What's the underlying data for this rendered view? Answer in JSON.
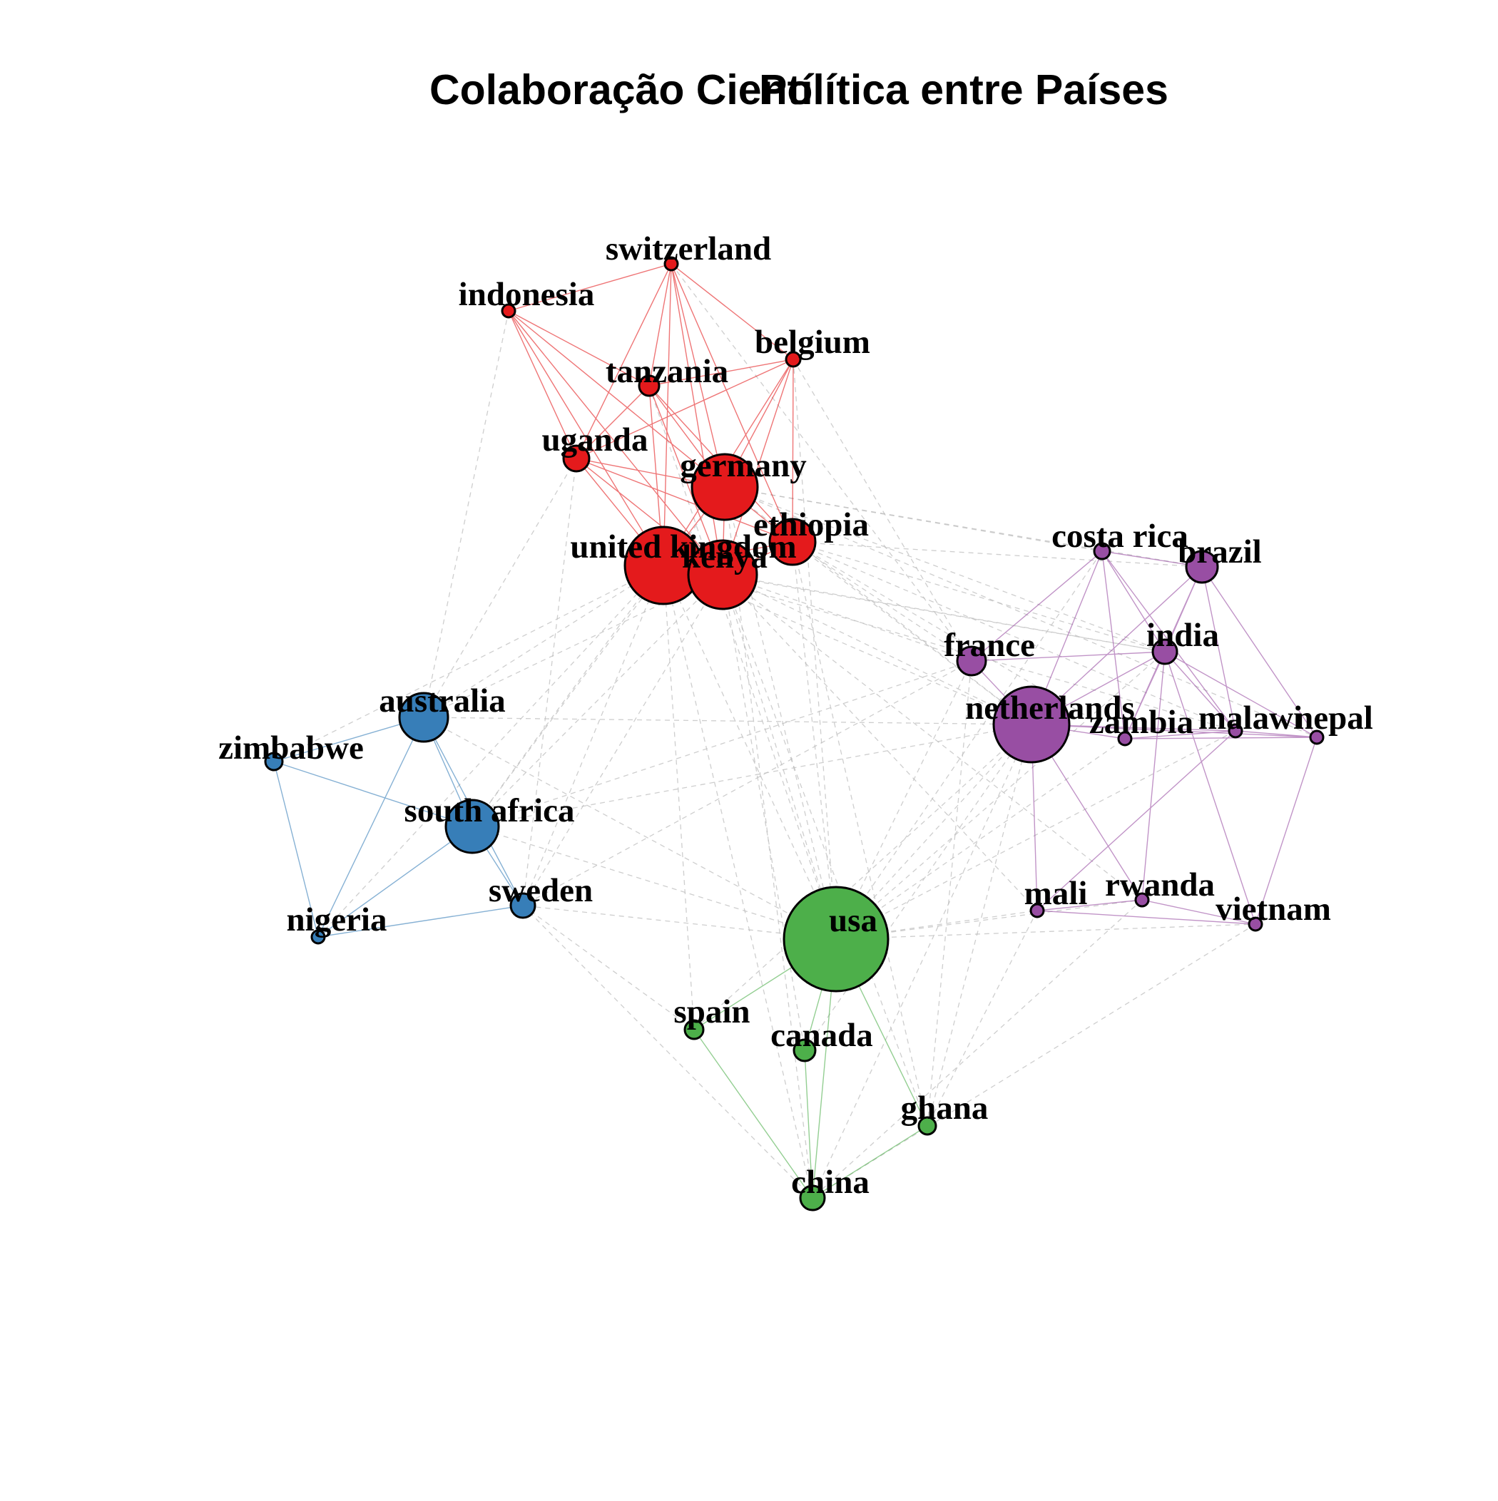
{
  "title_parts": [
    "Colaboração Cientí",
    "Países"
  ],
  "title_parts_b": "Política entre Países",
  "community_colors": {
    "red": "#E41A1C",
    "blue": "#377EB8",
    "green": "#4DAF4A",
    "purple": "#984EA3",
    "inter": "#BDBDBD"
  },
  "nodes": [
    {
      "id": "switzerland",
      "label": "switzerland",
      "group": "red",
      "weight": 1
    },
    {
      "id": "indonesia",
      "label": "indonesia",
      "group": "red",
      "weight": 1
    },
    {
      "id": "belgium",
      "label": "belgium",
      "group": "red",
      "weight": 1
    },
    {
      "id": "tanzania",
      "label": "tanzania",
      "group": "red",
      "weight": 1.3
    },
    {
      "id": "uganda",
      "label": "uganda",
      "group": "red",
      "weight": 1.8
    },
    {
      "id": "germany",
      "label": "germany",
      "group": "red",
      "weight": 6
    },
    {
      "id": "ethiopia",
      "label": "ethiopia",
      "group": "red",
      "weight": 4
    },
    {
      "id": "united_kingdom",
      "label": "united kingdom",
      "group": "red",
      "weight": 9
    },
    {
      "id": "kenya",
      "label": "kenya",
      "group": "red",
      "weight": 7
    },
    {
      "id": "australia",
      "label": "australia",
      "group": "blue",
      "weight": 3.5
    },
    {
      "id": "zimbabwe",
      "label": "zimbabwe",
      "group": "blue",
      "weight": 1.2
    },
    {
      "id": "south_africa",
      "label": "south africa",
      "group": "blue",
      "weight": 4.5
    },
    {
      "id": "sweden",
      "label": "sweden",
      "group": "blue",
      "weight": 1.8
    },
    {
      "id": "nigeria",
      "label": "nigeria",
      "group": "blue",
      "weight": 0.8
    },
    {
      "id": "usa",
      "label": "usa",
      "group": "green",
      "weight": 14
    },
    {
      "id": "spain",
      "label": "spain",
      "group": "green",
      "weight": 1.2
    },
    {
      "id": "canada",
      "label": "canada",
      "group": "green",
      "weight": 1.6
    },
    {
      "id": "ghana",
      "label": "ghana",
      "group": "green",
      "weight": 1.3
    },
    {
      "id": "china",
      "label": "china",
      "group": "green",
      "weight": 2
    },
    {
      "id": "costa_rica",
      "label": "costa rica",
      "group": "purple",
      "weight": 1
    },
    {
      "id": "brazil",
      "label": "brazil",
      "group": "purple",
      "weight": 2.5
    },
    {
      "id": "france",
      "label": "france",
      "group": "purple",
      "weight": 2.5
    },
    {
      "id": "india",
      "label": "india",
      "group": "purple",
      "weight": 2.2
    },
    {
      "id": "netherlands",
      "label": "netherlands",
      "group": "purple",
      "weight": 9
    },
    {
      "id": "zambia",
      "label": "zambia",
      "group": "purple",
      "weight": 0.9
    },
    {
      "id": "malawi",
      "label": "malawi",
      "group": "purple",
      "weight": 0.9
    },
    {
      "id": "nepal",
      "label": "nepal",
      "group": "purple",
      "weight": 0.9
    },
    {
      "id": "mali",
      "label": "mali",
      "group": "purple",
      "weight": 0.9
    },
    {
      "id": "rwanda",
      "label": "rwanda",
      "group": "purple",
      "weight": 0.9
    },
    {
      "id": "vietnam",
      "label": "vietnam",
      "group": "purple",
      "weight": 0.9
    }
  ],
  "edges_intra": [
    [
      "switzerland",
      "indonesia"
    ],
    [
      "switzerland",
      "belgium"
    ],
    [
      "switzerland",
      "tanzania"
    ],
    [
      "switzerland",
      "uganda"
    ],
    [
      "switzerland",
      "germany"
    ],
    [
      "switzerland",
      "kenya"
    ],
    [
      "switzerland",
      "united_kingdom"
    ],
    [
      "switzerland",
      "ethiopia"
    ],
    [
      "indonesia",
      "uganda"
    ],
    [
      "indonesia",
      "germany"
    ],
    [
      "indonesia",
      "kenya"
    ],
    [
      "indonesia",
      "united_kingdom"
    ],
    [
      "indonesia",
      "tanzania"
    ],
    [
      "belgium",
      "tanzania"
    ],
    [
      "belgium",
      "germany"
    ],
    [
      "belgium",
      "ethiopia"
    ],
    [
      "belgium",
      "kenya"
    ],
    [
      "belgium",
      "united_kingdom"
    ],
    [
      "belgium",
      "uganda"
    ],
    [
      "tanzania",
      "uganda"
    ],
    [
      "tanzania",
      "germany"
    ],
    [
      "tanzania",
      "kenya"
    ],
    [
      "tanzania",
      "united_kingdom"
    ],
    [
      "tanzania",
      "ethiopia"
    ],
    [
      "uganda",
      "germany"
    ],
    [
      "uganda",
      "kenya"
    ],
    [
      "uganda",
      "united_kingdom"
    ],
    [
      "uganda",
      "ethiopia"
    ],
    [
      "germany",
      "ethiopia"
    ],
    [
      "germany",
      "kenya"
    ],
    [
      "germany",
      "united_kingdom"
    ],
    [
      "ethiopia",
      "kenya"
    ],
    [
      "ethiopia",
      "united_kingdom"
    ],
    [
      "kenya",
      "united_kingdom"
    ],
    [
      "australia",
      "zimbabwe"
    ],
    [
      "australia",
      "south_africa"
    ],
    [
      "australia",
      "nigeria"
    ],
    [
      "australia",
      "sweden"
    ],
    [
      "zimbabwe",
      "south_africa"
    ],
    [
      "zimbabwe",
      "nigeria"
    ],
    [
      "south_africa",
      "nigeria"
    ],
    [
      "south_africa",
      "sweden"
    ],
    [
      "nigeria",
      "sweden"
    ],
    [
      "usa",
      "spain"
    ],
    [
      "usa",
      "canada"
    ],
    [
      "usa",
      "ghana"
    ],
    [
      "usa",
      "china"
    ],
    [
      "spain",
      "china"
    ],
    [
      "canada",
      "china"
    ],
    [
      "ghana",
      "china"
    ],
    [
      "costa_rica",
      "brazil"
    ],
    [
      "costa_rica",
      "india"
    ],
    [
      "costa_rica",
      "netherlands"
    ],
    [
      "costa_rica",
      "france"
    ],
    [
      "costa_rica",
      "zambia"
    ],
    [
      "costa_rica",
      "malawi"
    ],
    [
      "brazil",
      "india"
    ],
    [
      "brazil",
      "netherlands"
    ],
    [
      "brazil",
      "malawi"
    ],
    [
      "brazil",
      "nepal"
    ],
    [
      "brazil",
      "zambia"
    ],
    [
      "france",
      "netherlands"
    ],
    [
      "france",
      "india"
    ],
    [
      "india",
      "netherlands"
    ],
    [
      "india",
      "zambia"
    ],
    [
      "india",
      "malawi"
    ],
    [
      "india",
      "nepal"
    ],
    [
      "india",
      "rwanda"
    ],
    [
      "india",
      "vietnam"
    ],
    [
      "netherlands",
      "zambia"
    ],
    [
      "netherlands",
      "malawi"
    ],
    [
      "netherlands",
      "nepal"
    ],
    [
      "netherlands",
      "mali"
    ],
    [
      "netherlands",
      "rwanda"
    ],
    [
      "zambia",
      "malawi"
    ],
    [
      "zambia",
      "nepal"
    ],
    [
      "malawi",
      "nepal"
    ],
    [
      "malawi",
      "mali"
    ],
    [
      "nepal",
      "vietnam"
    ],
    [
      "mali",
      "rwanda"
    ],
    [
      "mali",
      "vietnam"
    ],
    [
      "rwanda",
      "vietnam"
    ]
  ],
  "edges_inter": [
    [
      "kenya",
      "usa"
    ],
    [
      "united_kingdom",
      "usa"
    ],
    [
      "germany",
      "usa"
    ],
    [
      "ethiopia",
      "usa"
    ],
    [
      "kenya",
      "netherlands"
    ],
    [
      "ethiopia",
      "netherlands"
    ],
    [
      "united_kingdom",
      "netherlands"
    ],
    [
      "germany",
      "netherlands"
    ],
    [
      "kenya",
      "france"
    ],
    [
      "ethiopia",
      "france"
    ],
    [
      "germany",
      "costa_rica"
    ],
    [
      "united_kingdom",
      "australia"
    ],
    [
      "united_kingdom",
      "south_africa"
    ],
    [
      "kenya",
      "south_africa"
    ],
    [
      "germany",
      "south_africa"
    ],
    [
      "united_kingdom",
      "sweden"
    ],
    [
      "kenya",
      "sweden"
    ],
    [
      "uganda",
      "sweden"
    ],
    [
      "uganda",
      "australia"
    ],
    [
      "indonesia",
      "australia"
    ],
    [
      "belgium",
      "france"
    ],
    [
      "switzerland",
      "france"
    ],
    [
      "belgium",
      "usa"
    ],
    [
      "tanzania",
      "usa"
    ],
    [
      "united_kingdom",
      "india"
    ],
    [
      "kenya",
      "india"
    ],
    [
      "ethiopia",
      "brazil"
    ],
    [
      "ethiopia",
      "india"
    ],
    [
      "germany",
      "brazil"
    ],
    [
      "kenya",
      "mali"
    ],
    [
      "kenya",
      "rwanda"
    ],
    [
      "united_kingdom",
      "spain"
    ],
    [
      "kenya",
      "canada"
    ],
    [
      "kenya",
      "ghana"
    ],
    [
      "united_kingdom",
      "china"
    ],
    [
      "germany",
      "china"
    ],
    [
      "ethiopia",
      "ghana"
    ],
    [
      "usa",
      "netherlands"
    ],
    [
      "usa",
      "france"
    ],
    [
      "usa",
      "india"
    ],
    [
      "usa",
      "mali"
    ],
    [
      "usa",
      "rwanda"
    ],
    [
      "usa",
      "vietnam"
    ],
    [
      "usa",
      "south_africa"
    ],
    [
      "usa",
      "sweden"
    ],
    [
      "usa",
      "australia"
    ],
    [
      "usa",
      "zambia"
    ],
    [
      "usa",
      "malawi"
    ],
    [
      "usa",
      "costa_rica"
    ],
    [
      "south_africa",
      "netherlands"
    ],
    [
      "australia",
      "netherlands"
    ],
    [
      "sweden",
      "spain"
    ],
    [
      "sweden",
      "china"
    ],
    [
      "nigeria",
      "united_kingdom"
    ],
    [
      "zimbabwe",
      "united_kingdom"
    ],
    [
      "netherlands",
      "ghana"
    ],
    [
      "netherlands",
      "china"
    ],
    [
      "netherlands",
      "canada"
    ],
    [
      "france",
      "sweden"
    ],
    [
      "france",
      "south_africa"
    ],
    [
      "mali",
      "ghana"
    ],
    [
      "vietnam",
      "china"
    ],
    [
      "rwanda",
      "china"
    ],
    [
      "ghana",
      "france"
    ],
    [
      "spain",
      "netherlands"
    ],
    [
      "australia",
      "kenya"
    ],
    [
      "germany",
      "india"
    ],
    [
      "germany",
      "nepal"
    ],
    [
      "ethiopia",
      "malawi"
    ],
    [
      "ethiopia",
      "zambia"
    ],
    [
      "united_kingdom",
      "malawi"
    ]
  ]
}
